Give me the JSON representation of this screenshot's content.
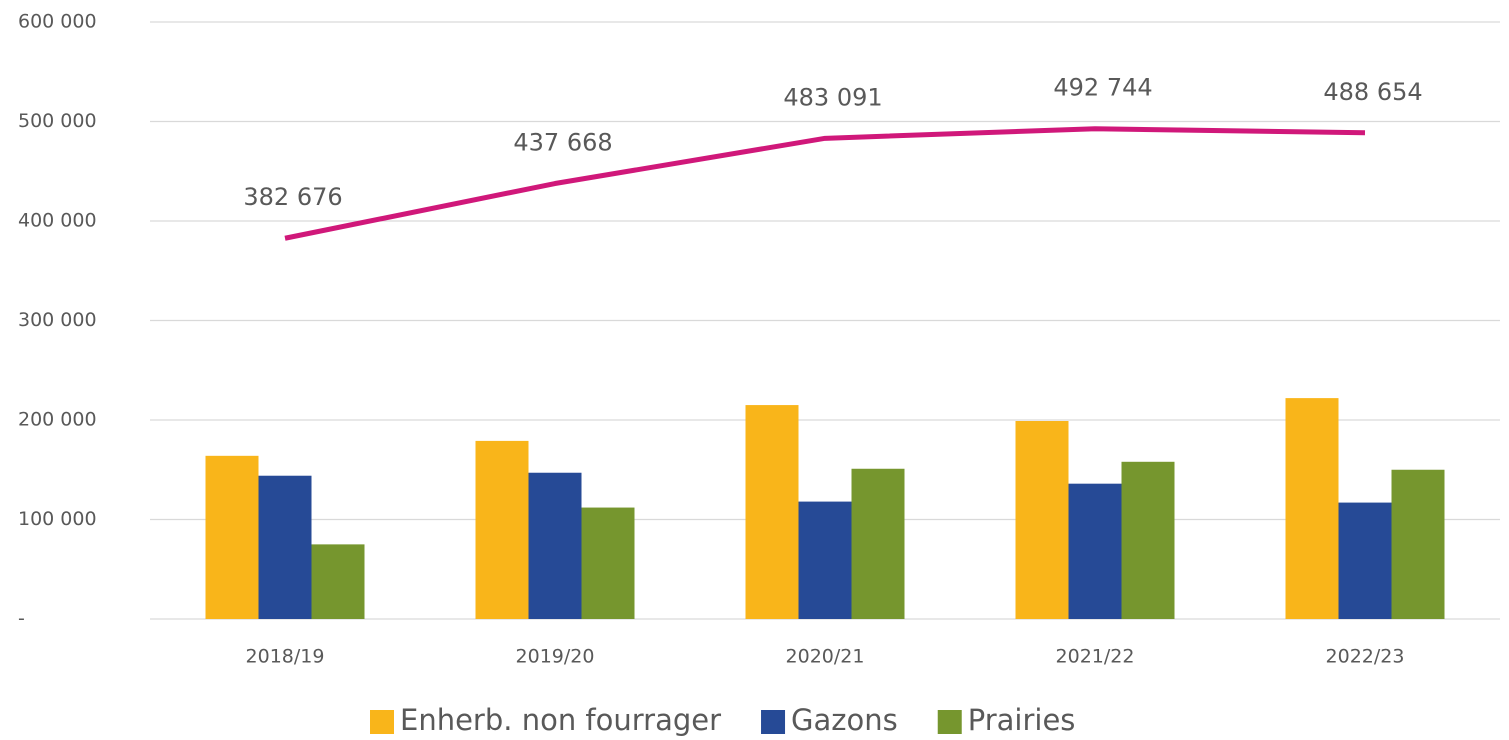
{
  "chart_data": {
    "type": "bar",
    "categories": [
      "2018/19",
      "2019/20",
      "2020/21",
      "2021/22",
      "2022/23"
    ],
    "series": [
      {
        "name": "Enherb. non fourrager",
        "color": "#f9b51a",
        "values": [
          164000,
          179000,
          215000,
          199000,
          222000
        ]
      },
      {
        "name": "Gazons",
        "color": "#264a96",
        "values": [
          144000,
          147000,
          118000,
          136000,
          117000
        ]
      },
      {
        "name": "Prairies",
        "color": "#76962e",
        "values": [
          75000,
          112000,
          151000,
          158000,
          150000
        ]
      },
      {
        "type": "line",
        "color": "#d0187a",
        "values": [
          382676,
          437668,
          483091,
          492744,
          488654
        ],
        "value_labels": [
          "382 676",
          "437 668",
          "483 091",
          "492 744",
          "488 654"
        ]
      }
    ],
    "ylim": [
      0,
      600000
    ],
    "yticks": [
      {
        "value": 0,
        "label": "-"
      },
      {
        "value": 100000,
        "label": "100 000"
      },
      {
        "value": 200000,
        "label": "200 000"
      },
      {
        "value": 300000,
        "label": "300 000"
      },
      {
        "value": 400000,
        "label": "400 000"
      },
      {
        "value": 500000,
        "label": "500 000"
      },
      {
        "value": 600000,
        "label": "600 000"
      }
    ],
    "grid": true,
    "legend": "bottom"
  }
}
